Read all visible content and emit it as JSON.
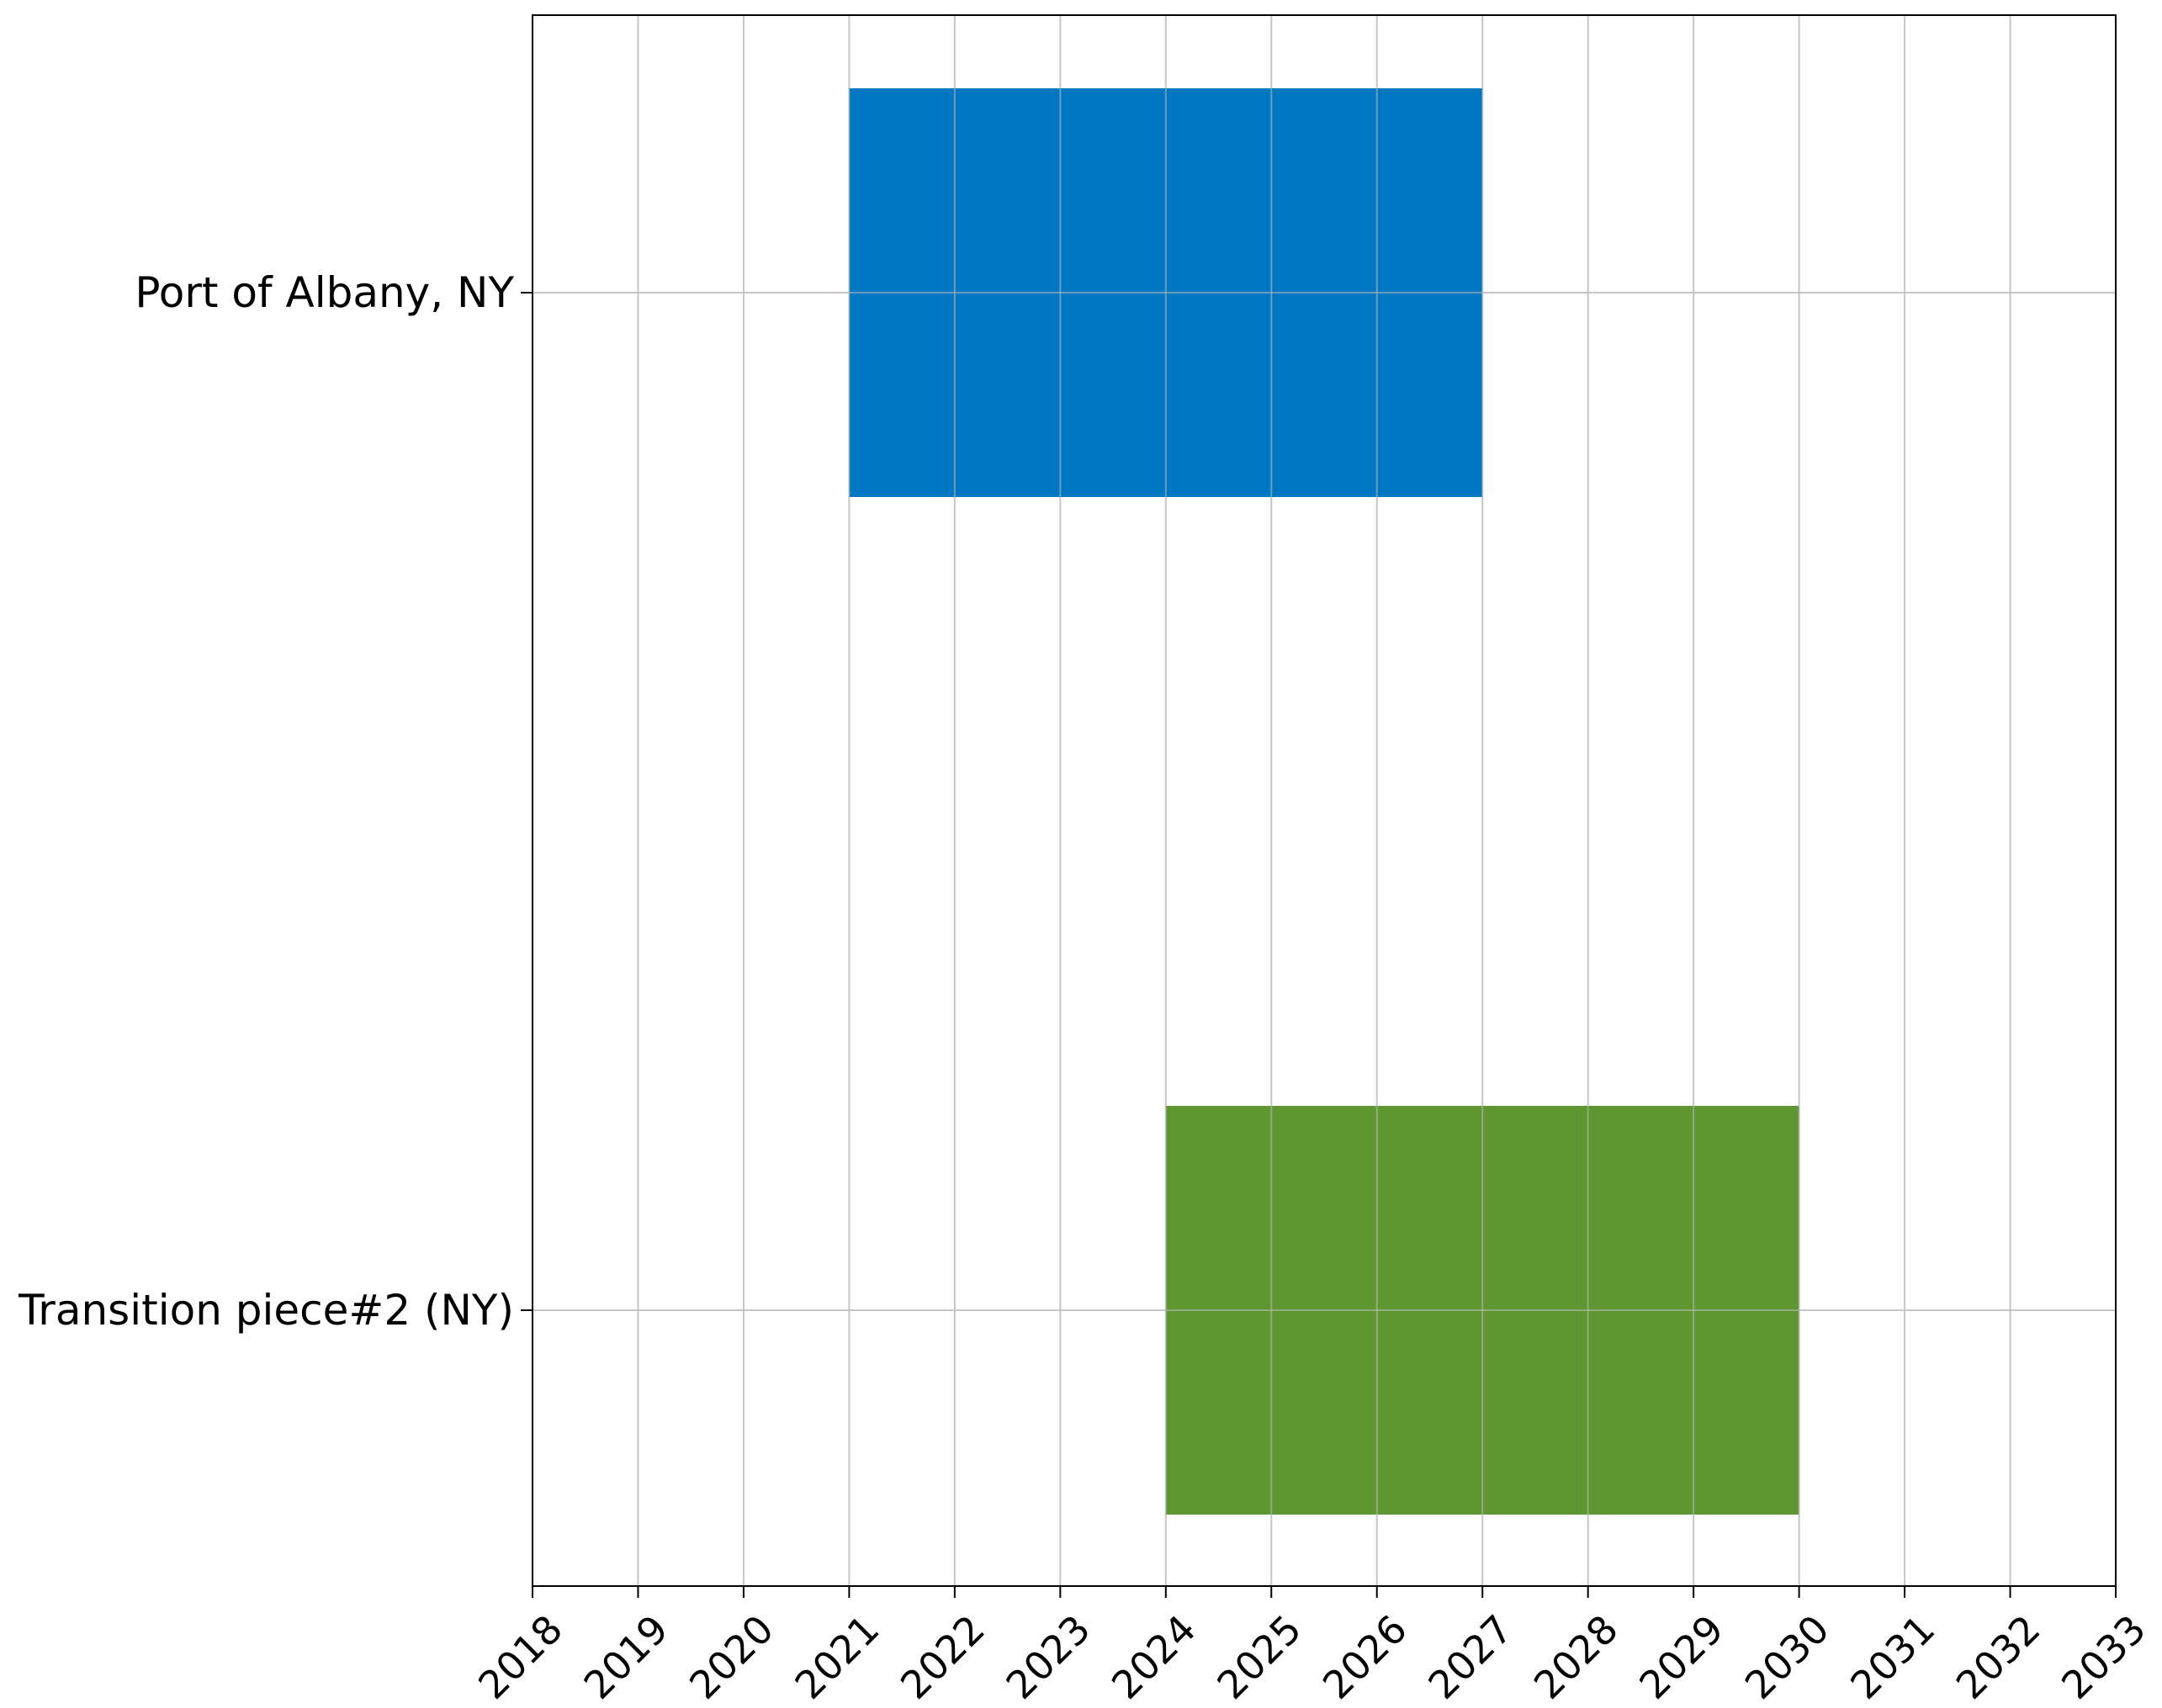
{
  "chart_data": {
    "type": "bar",
    "orientation": "horizontal",
    "subtype": "timeline",
    "title": "",
    "xlabel": "",
    "ylabel": "",
    "grid": true,
    "xlim": [
      2018,
      2033
    ],
    "x_ticks": [
      "2018",
      "2019",
      "2020",
      "2021",
      "2022",
      "2023",
      "2024",
      "2025",
      "2026",
      "2027",
      "2028",
      "2029",
      "2030",
      "2031",
      "2032",
      "2033"
    ],
    "categories": [
      "Port of Albany, NY",
      "Transition piece#2 (NY)"
    ],
    "bars": [
      {
        "category": "Port of Albany, NY",
        "start": 2021,
        "end": 2027,
        "color": "#0077C0"
      },
      {
        "category": "Transition piece#2 (NY)",
        "start": 2024,
        "end": 2030,
        "color": "#5E9732"
      }
    ]
  }
}
